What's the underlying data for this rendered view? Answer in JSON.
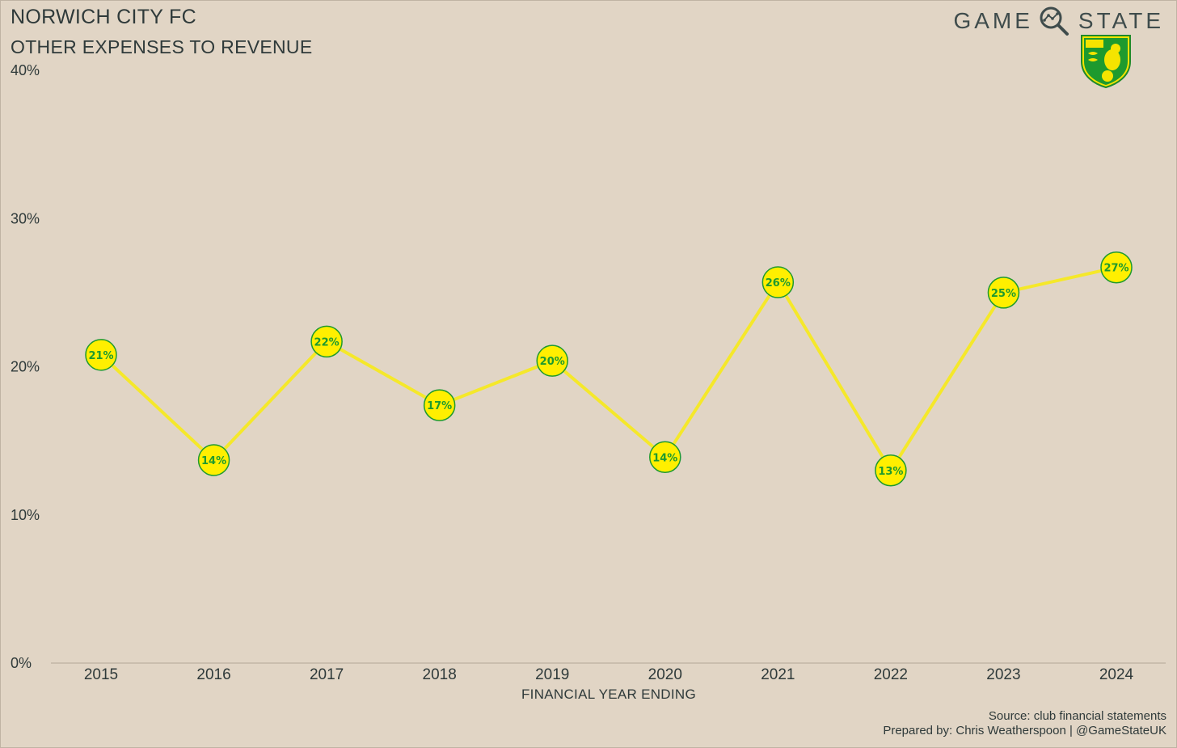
{
  "header": {
    "title": "NORWICH CITY FC",
    "subtitle": "OTHER EXPENSES TO REVENUE",
    "brand_left": "GAME",
    "brand_right": "STATE"
  },
  "footer": {
    "source": "Source: club financial statements",
    "prepared": "Prepared by: Chris Weatherspoon | @GameStateUK"
  },
  "colors": {
    "background": "#e1d5c5",
    "line": "#f5e82a",
    "marker_fill": "#ffef00",
    "marker_edge": "#1e9a2e",
    "text": "#2f3a3a"
  },
  "chart_data": {
    "type": "line",
    "title": "OTHER EXPENSES TO REVENUE",
    "xlabel": "FINANCIAL YEAR ENDING",
    "ylabel": "",
    "x": [
      "2015",
      "2016",
      "2017",
      "2018",
      "2019",
      "2020",
      "2021",
      "2022",
      "2023",
      "2024"
    ],
    "values": [
      20.8,
      13.7,
      21.7,
      17.4,
      20.4,
      13.9,
      25.7,
      13.0,
      25.0,
      26.7
    ],
    "data_labels": [
      "21%",
      "14%",
      "22%",
      "17%",
      "20%",
      "14%",
      "26%",
      "13%",
      "25%",
      "27%"
    ],
    "ylim": [
      0,
      40
    ],
    "yticks": [
      0,
      10,
      20,
      30,
      40
    ],
    "ytick_labels": [
      "0%",
      "10%",
      "20%",
      "30%",
      "40%"
    ],
    "grid": false,
    "legend": "none"
  }
}
